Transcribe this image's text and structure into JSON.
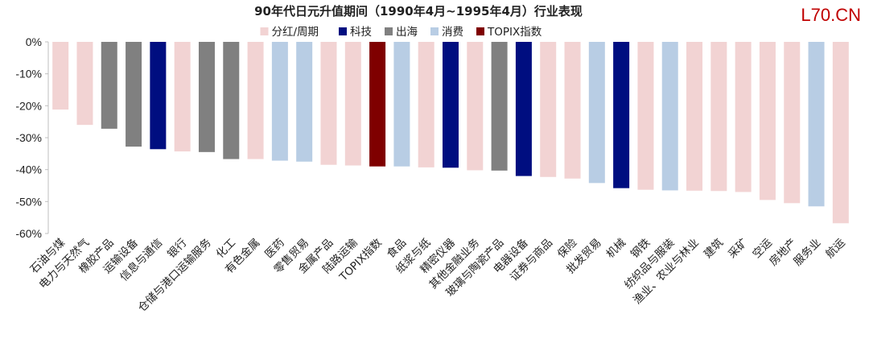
{
  "watermark": "L70.CN",
  "colors": {
    "分红/周期": "#f2d3d3",
    "科技": "#000e80",
    "出海": "#808080",
    "消费": "#b8cde4",
    "TOPIX指数": "#7f0000"
  },
  "chart_data": {
    "type": "bar",
    "title": "90年代日元升值期间（1990年4月~1995年4月）行业表现",
    "ylim": [
      -60,
      0
    ],
    "yticks": [
      0,
      -10,
      -20,
      -30,
      -40,
      -50,
      -60
    ],
    "ytick_labels": [
      "0%",
      "-10%",
      "-20%",
      "-30%",
      "-40%",
      "-50%",
      "-60%"
    ],
    "legend": {
      "placement": "top-center",
      "entries": [
        "分红/周期",
        "科技",
        "出海",
        "消费",
        "TOPIX指数"
      ]
    },
    "categories": [
      "石油与煤",
      "电力与天然气",
      "橡胶产品",
      "运输设备",
      "信息与通信",
      "银行",
      "仓储与港口运输服务",
      "化工",
      "有色金属",
      "医药",
      "零售贸易",
      "金属产品",
      "陆路运输",
      "TOPIX指数",
      "食品",
      "纸浆与纸",
      "精密仪器",
      "其他金融业务",
      "玻璃与陶瓷产品",
      "电器设备",
      "证券与商品",
      "保险",
      "批发贸易",
      "机械",
      "钢铁",
      "纺织品与服装",
      "渔业、农业与林业",
      "建筑",
      "采矿",
      "空运",
      "房地产",
      "服务业",
      "航运"
    ],
    "values": [
      -21.2,
      -26.0,
      -27.2,
      -32.8,
      -33.6,
      -34.3,
      -34.5,
      -36.7,
      -36.7,
      -37.2,
      -37.5,
      -38.5,
      -38.7,
      -39.0,
      -39.0,
      -39.3,
      -39.4,
      -40.2,
      -40.3,
      -42.0,
      -42.3,
      -42.8,
      -44.2,
      -45.8,
      -46.3,
      -46.5,
      -46.6,
      -46.7,
      -47.0,
      -49.5,
      -50.5,
      -51.5,
      -56.8
    ],
    "groups": [
      "分红/周期",
      "分红/周期",
      "出海",
      "出海",
      "科技",
      "分红/周期",
      "出海",
      "出海",
      "分红/周期",
      "消费",
      "消费",
      "分红/周期",
      "分红/周期",
      "TOPIX指数",
      "消费",
      "分红/周期",
      "科技",
      "分红/周期",
      "出海",
      "科技",
      "分红/周期",
      "分红/周期",
      "消费",
      "科技",
      "分红/周期",
      "消费",
      "分红/周期",
      "分红/周期",
      "分红/周期",
      "分红/周期",
      "分红/周期",
      "消费",
      "分红/周期"
    ],
    "grid": false
  }
}
